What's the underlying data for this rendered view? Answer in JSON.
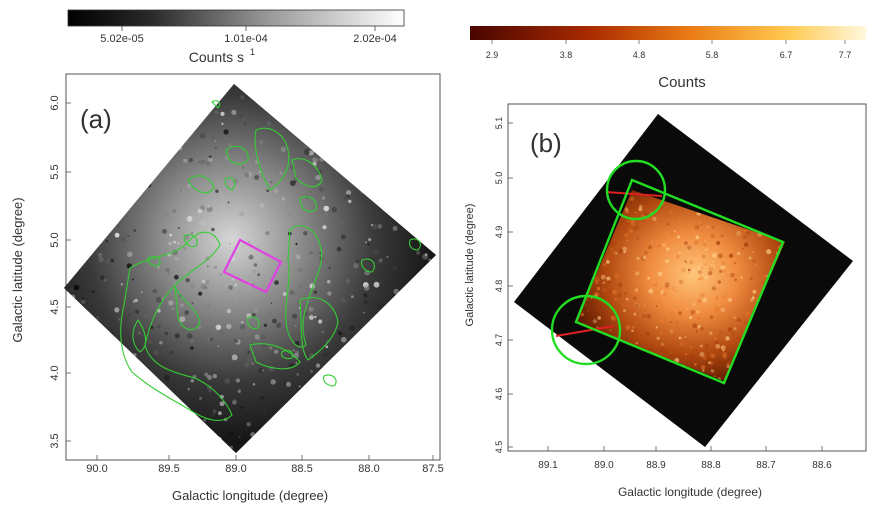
{
  "panel_a": {
    "label": "(a)",
    "colorbar": {
      "title": "Counts s",
      "title_superscript": "1",
      "ticks": [
        "5.02e-05",
        "1.01e-04",
        "2.02e-04"
      ]
    },
    "xlabel": "Galactic longitude (degree)",
    "ylabel": "Galactic latitude (degree)",
    "x_ticks": [
      "90.0",
      "89.5",
      "89.0",
      "88.5",
      "88.0",
      "87.5"
    ],
    "y_ticks": [
      "6.0",
      "5.5",
      "5.0",
      "4.5",
      "4.0",
      "3.5"
    ]
  },
  "panel_b": {
    "label": "(b)",
    "colorbar": {
      "title": "Counts",
      "ticks": [
        "2.9",
        "3.8",
        "4.8",
        "5.8",
        "6.7",
        "7.7"
      ]
    },
    "xlabel": "Galactic longitude (degree)",
    "ylabel": "Galactic latitude (degree)",
    "x_ticks": [
      "89.1",
      "89.0",
      "88.9",
      "88.8",
      "88.7",
      "88.6"
    ],
    "y_ticks": [
      "5.1",
      "5.0",
      "4.9",
      "4.8",
      "4.7",
      "4.6",
      "4.5"
    ]
  },
  "colors": {
    "contour": "#33cc33",
    "box_a": "#e040e0",
    "region_b": "#22dd22",
    "line_b": "#e02020"
  }
}
